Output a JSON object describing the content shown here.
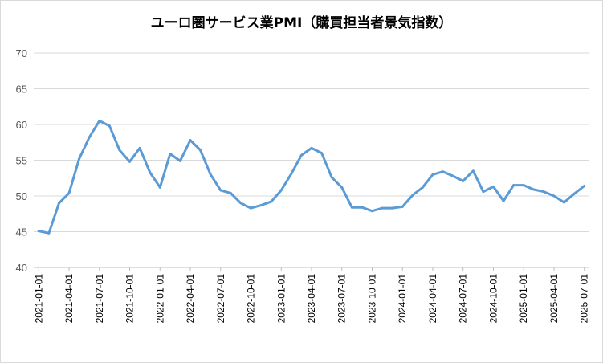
{
  "chart_data": {
    "type": "line",
    "title": "ユーロ圏サービス業PMI（購買担当者景気指数）",
    "xlabel": "",
    "ylabel": "",
    "ylim": [
      40,
      70
    ],
    "yticks": [
      40,
      45,
      50,
      55,
      60,
      65,
      70
    ],
    "grid": "horizontal",
    "legend": "none",
    "line_color": "#5b9bd5",
    "x_tick_labels": [
      "2021-01-01",
      "2021-04-01",
      "2021-07-01",
      "2021-10-01",
      "2022-01-01",
      "2022-04-01",
      "2022-07-01",
      "2022-10-01",
      "2023-01-01",
      "2023-04-01",
      "2023-07-01",
      "2023-10-01",
      "2024-01-01",
      "2024-04-01",
      "2024-07-01",
      "2024-10-01",
      "2025-01-01",
      "2025-04-01",
      "2025-07-01"
    ],
    "x": [
      "2021-01-01",
      "2021-02-01",
      "2021-03-01",
      "2021-04-01",
      "2021-05-01",
      "2021-06-01",
      "2021-07-01",
      "2021-08-01",
      "2021-09-01",
      "2021-10-01",
      "2021-11-01",
      "2021-12-01",
      "2022-01-01",
      "2022-02-01",
      "2022-03-01",
      "2022-04-01",
      "2022-05-01",
      "2022-06-01",
      "2022-07-01",
      "2022-08-01",
      "2022-09-01",
      "2022-10-01",
      "2022-11-01",
      "2022-12-01",
      "2023-01-01",
      "2023-02-01",
      "2023-03-01",
      "2023-04-01",
      "2023-05-01",
      "2023-06-01",
      "2023-07-01",
      "2023-08-01",
      "2023-09-01",
      "2023-10-01",
      "2023-11-01",
      "2023-12-01",
      "2024-01-01",
      "2024-02-01",
      "2024-03-01",
      "2024-04-01",
      "2024-05-01",
      "2024-06-01",
      "2024-07-01",
      "2024-08-01",
      "2024-09-01",
      "2024-10-01",
      "2024-11-01",
      "2024-12-01",
      "2025-01-01",
      "2025-02-01",
      "2025-03-01",
      "2025-04-01",
      "2025-05-01",
      "2025-06-01",
      "2025-07-01"
    ],
    "series": [
      {
        "name": "",
        "values": [
          45.1,
          44.8,
          49.0,
          50.4,
          55.2,
          58.2,
          60.5,
          59.8,
          56.4,
          54.8,
          56.7,
          53.3,
          51.2,
          55.9,
          54.9,
          57.8,
          56.4,
          53.0,
          50.8,
          50.4,
          49.0,
          48.3,
          48.7,
          49.2,
          50.8,
          53.1,
          55.7,
          56.7,
          56.0,
          52.6,
          51.2,
          48.4,
          48.4,
          47.9,
          48.3,
          48.3,
          48.5,
          50.1,
          51.2,
          53.0,
          53.4,
          52.8,
          52.1,
          53.5,
          50.6,
          51.3,
          49.3,
          51.5,
          51.5,
          50.9,
          50.6,
          50.0,
          49.1,
          50.3,
          51.4
        ]
      }
    ]
  }
}
